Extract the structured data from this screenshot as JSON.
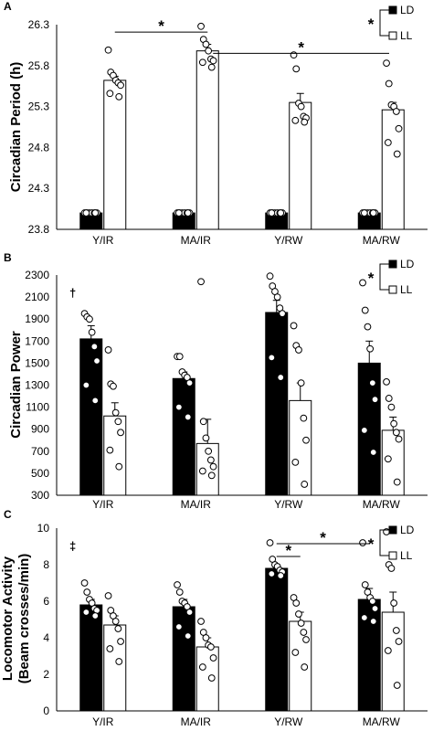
{
  "chart_data": [
    {
      "type": "bar",
      "panel_label": "A",
      "ylabel": "Circadian Period (h)",
      "categories": [
        "Y/IR",
        "MA/IR",
        "Y/RW",
        "MA/RW"
      ],
      "ylim": [
        23.8,
        26.3
      ],
      "yticks": [
        "23.8",
        "24.3",
        "24.8",
        "25.3",
        "25.8",
        "26.3"
      ],
      "series": [
        {
          "name": "LD",
          "fill": "#000000",
          "values": [
            24.0,
            24.0,
            24.0,
            24.0
          ],
          "errors": [
            0,
            0,
            0,
            0
          ],
          "points": [
            [
              24.0,
              24.0,
              24.0,
              24.0,
              24.0,
              24.0,
              24.0,
              24.0
            ],
            [
              24.0,
              24.0,
              24.0,
              24.0,
              24.0,
              24.0,
              24.0,
              24.0
            ],
            [
              24.0,
              24.0,
              24.0,
              24.0,
              24.0,
              24.0,
              24.0,
              24.0
            ],
            [
              24.0,
              24.0,
              24.0,
              24.0,
              24.0,
              24.0,
              24.0,
              24.0
            ]
          ]
        },
        {
          "name": "LL",
          "fill": "#ffffff",
          "values": [
            25.62,
            25.98,
            25.35,
            25.26
          ],
          "errors": [
            0.05,
            0.08,
            0.11,
            0.09
          ],
          "points": [
            [
              25.99,
              25.72,
              25.68,
              25.62,
              25.59,
              25.56,
              25.46,
              25.42
            ],
            [
              26.28,
              26.12,
              26.06,
              25.98,
              25.88,
              25.86,
              25.84,
              25.78
            ],
            [
              25.93,
              25.76,
              25.34,
              25.3,
              25.18,
              25.16,
              25.13,
              25.11
            ],
            [
              25.83,
              25.58,
              25.32,
              25.3,
              25.24,
              25.03,
              24.86,
              24.72
            ]
          ]
        }
      ],
      "legend": [
        "LD",
        "LL"
      ],
      "legend_star": "*",
      "sig_brackets": [
        {
          "from_cat": 0,
          "to_cat": 1,
          "label": "*",
          "value": 26.21
        },
        {
          "from_cat": 1,
          "to_cat": 3,
          "label": "*",
          "value": 25.95
        }
      ],
      "marker": ""
    },
    {
      "type": "bar",
      "panel_label": "B",
      "ylabel": "Circadian Power",
      "categories": [
        "Y/IR",
        "MA/IR",
        "Y/RW",
        "MA/RW"
      ],
      "ylim": [
        300,
        2300
      ],
      "yticks": [
        "300",
        "500",
        "700",
        "900",
        "1100",
        "1300",
        "1500",
        "1700",
        "1900",
        "2100",
        "2300"
      ],
      "series": [
        {
          "name": "LD",
          "fill": "#000000",
          "values": [
            1720,
            1360,
            1960,
            1500
          ],
          "errors": [
            120,
            60,
            110,
            200
          ],
          "points": [
            [
              1950,
              1920,
              1900,
              1780,
              1650,
              1520,
              1300,
              1160
            ],
            [
              1560,
              1560,
              1420,
              1390,
              1370,
              1320,
              1100,
              1010
            ],
            [
              2290,
              2200,
              2150,
              2100,
              2000,
              1950,
              1550,
              1370
            ],
            [
              2230,
              1980,
              1830,
              1630,
              1320,
              1170,
              890,
              690
            ]
          ]
        },
        {
          "name": "LL",
          "fill": "#ffffff",
          "values": [
            1020,
            770,
            1160,
            890
          ],
          "errors": [
            120,
            220,
            160,
            120
          ],
          "points": [
            [
              1620,
              1310,
              1290,
              1050,
              970,
              870,
              710,
              560
            ],
            [
              2240,
              970,
              820,
              700,
              620,
              560,
              520,
              480
            ],
            [
              1840,
              1660,
              1620,
              1320,
              1000,
              800,
              600,
              400
            ],
            [
              1330,
              1180,
              1100,
              950,
              870,
              810,
              630,
              420
            ]
          ]
        }
      ],
      "legend": [
        "LD",
        "LL"
      ],
      "legend_star": "*",
      "sig_brackets": [],
      "marker": "†"
    },
    {
      "type": "bar",
      "panel_label": "C",
      "ylabel": "Locomotor Activity",
      "ylabel2": "(Beam crosses/min)",
      "categories": [
        "Y/IR",
        "MA/IR",
        "Y/RW",
        "MA/RW"
      ],
      "ylim": [
        0,
        10
      ],
      "yticks": [
        "0",
        "2",
        "4",
        "6",
        "8",
        "10"
      ],
      "series": [
        {
          "name": "LD",
          "fill": "#000000",
          "values": [
            5.8,
            5.7,
            7.8,
            6.1
          ],
          "errors": [
            0.3,
            0.4,
            0.2,
            0.6
          ],
          "points": [
            [
              7.0,
              6.5,
              6.1,
              5.9,
              5.6,
              5.5,
              5.4,
              5.2
            ],
            [
              6.9,
              6.5,
              6.0,
              5.9,
              5.7,
              5.4,
              4.6,
              4.1
            ],
            [
              9.2,
              8.3,
              8.0,
              7.9,
              7.7,
              7.6,
              7.5,
              7.4
            ],
            [
              9.2,
              6.9,
              6.5,
              6.2,
              6.0,
              5.6,
              5.1,
              4.9
            ]
          ]
        },
        {
          "name": "LL",
          "fill": "#ffffff",
          "values": [
            4.7,
            3.5,
            4.9,
            5.4
          ],
          "errors": [
            0.5,
            0.5,
            0.5,
            1.1
          ],
          "points": [
            [
              6.3,
              5.5,
              5.2,
              4.9,
              4.5,
              3.8,
              3.4,
              2.7
            ],
            [
              4.9,
              4.3,
              4.0,
              3.6,
              3.5,
              2.9,
              2.4,
              1.8
            ],
            [
              6.2,
              5.9,
              5.3,
              4.8,
              4.3,
              3.9,
              3.2,
              2.4
            ],
            [
              9.8,
              8.0,
              7.8,
              5.9,
              4.4,
              3.8,
              3.3,
              1.4
            ]
          ]
        }
      ],
      "legend": [
        "LD",
        "LL"
      ],
      "legend_star": "*",
      "sig_brackets": [
        {
          "from_cat": 2,
          "to_cat": 2,
          "label": "*",
          "value": 8.45
        },
        {
          "from_cat": 2,
          "to_cat": 3,
          "label": "*",
          "value": 9.15
        }
      ],
      "marker": "‡"
    }
  ]
}
